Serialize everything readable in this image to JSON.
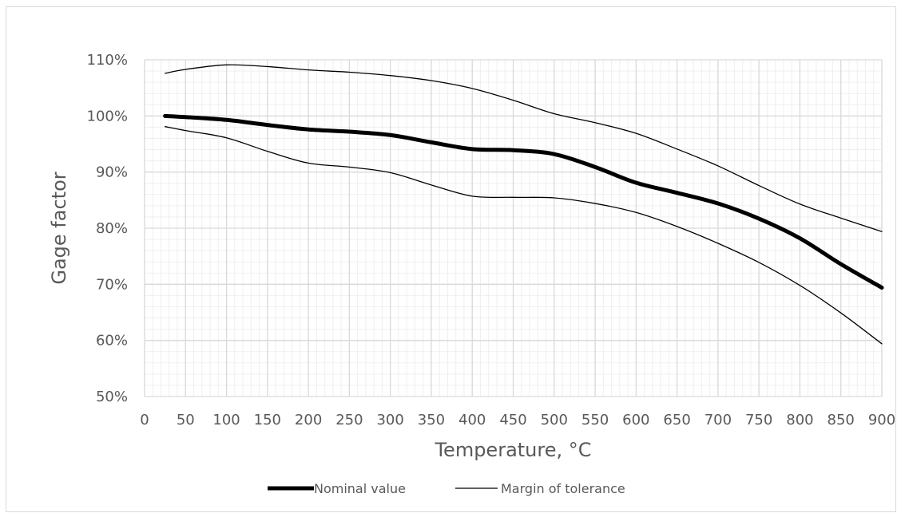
{
  "chart_data": {
    "type": "line",
    "title": "",
    "xlabel": "Temperature, °C",
    "ylabel": "Gage factor",
    "xlim": [
      0,
      900
    ],
    "ylim": [
      50,
      110
    ],
    "x_ticks": [
      0,
      50,
      100,
      150,
      200,
      250,
      300,
      350,
      400,
      450,
      500,
      550,
      600,
      650,
      700,
      750,
      800,
      850,
      900
    ],
    "x_tick_labels": [
      "0",
      "50",
      "100",
      "150",
      "200",
      "250",
      "300",
      "350",
      "400",
      "450",
      "500",
      "550",
      "600",
      "650",
      "700",
      "750",
      "800",
      "850",
      "900"
    ],
    "y_ticks": [
      50,
      60,
      70,
      80,
      90,
      100,
      110
    ],
    "y_tick_labels": [
      "50%",
      "60%",
      "70%",
      "80%",
      "90%",
      "100%",
      "110%"
    ],
    "grid": "major and minor",
    "legend_position": "bottom",
    "series": [
      {
        "name": "Nominal value",
        "style": "thick",
        "color": "#000000",
        "x": [
          25,
          50,
          100,
          150,
          200,
          250,
          300,
          350,
          400,
          450,
          500,
          550,
          600,
          650,
          700,
          750,
          800,
          850,
          900
        ],
        "values": [
          100,
          99.8,
          99.3,
          98.4,
          97.6,
          97.2,
          96.6,
          95.3,
          94.1,
          93.9,
          93.2,
          90.9,
          88.1,
          86.3,
          84.4,
          81.7,
          78.2,
          73.6,
          69.4
        ]
      },
      {
        "name": "Margin of tolerance",
        "style": "thin",
        "color": "#000000",
        "x": [
          25,
          50,
          100,
          150,
          200,
          250,
          300,
          350,
          400,
          450,
          500,
          550,
          600,
          650,
          700,
          750,
          800,
          850,
          900
        ],
        "values": [
          107.6,
          108.3,
          109.1,
          108.8,
          108.2,
          107.8,
          107.2,
          106.3,
          104.9,
          102.8,
          100.4,
          98.8,
          96.9,
          94.1,
          91.1,
          87.6,
          84.3,
          81.8,
          79.4
        ]
      },
      {
        "name": "Margin of tolerance",
        "style": "thin",
        "color": "#000000",
        "x": [
          25,
          50,
          100,
          150,
          200,
          250,
          300,
          350,
          400,
          450,
          500,
          550,
          600,
          650,
          700,
          750,
          800,
          850,
          900
        ],
        "values": [
          98.1,
          97.4,
          96.1,
          93.7,
          91.6,
          90.9,
          89.9,
          87.7,
          85.7,
          85.5,
          85.4,
          84.4,
          82.8,
          80.3,
          77.3,
          73.9,
          69.8,
          64.9,
          59.4
        ]
      }
    ],
    "legend": [
      {
        "label": "Nominal value",
        "style": "thick"
      },
      {
        "label": "Margin of tolerance",
        "style": "thin"
      }
    ]
  },
  "colors": {
    "background": "#ffffff",
    "major_grid": "#d9d9d9",
    "minor_grid": "#efefef",
    "line": "#000000",
    "text": "#595959"
  }
}
